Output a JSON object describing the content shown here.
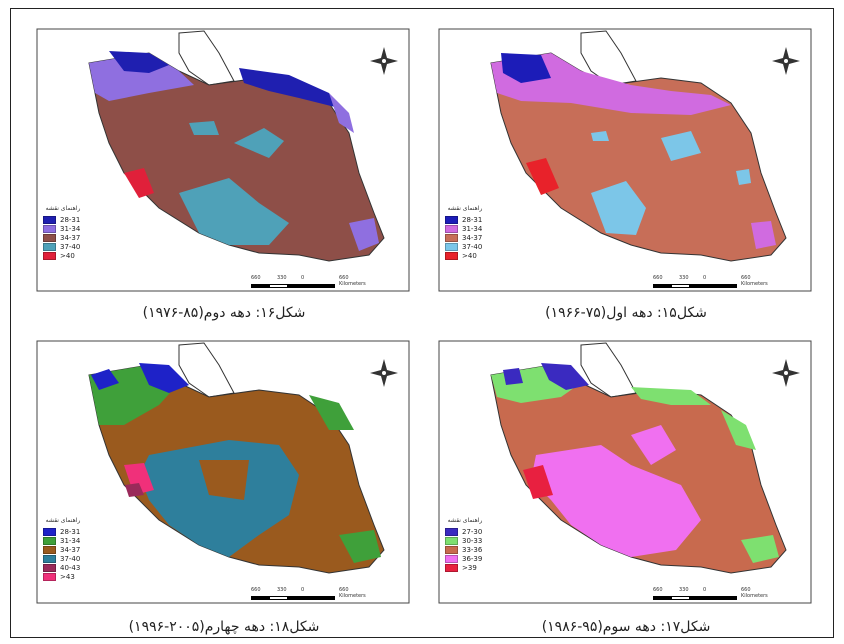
{
  "maps": [
    {
      "id": "map16",
      "caption": "شکل۱۶: دهه دوم(۸۵-۱۹۷۶)",
      "legend_title": "راهنمای نقشه",
      "legend": [
        {
          "label": "28-31",
          "color": "#1f1fb0"
        },
        {
          "label": "31-34",
          "color": "#8f6fe0"
        },
        {
          "label": "34-37",
          "color": "#8e4f48"
        },
        {
          "label": "37-40",
          "color": "#4fa1b8"
        },
        {
          "label": ">40",
          "color": "#e0203a"
        }
      ],
      "scale_text": "660 Kilometers",
      "scale_ticks": [
        "660",
        "330",
        "0"
      ]
    },
    {
      "id": "map15",
      "caption": "شکل۱۵: دهه اول(۷۵-۱۹۶۶)",
      "legend_title": "راهنمای نقشه",
      "legend": [
        {
          "label": "28-31",
          "color": "#1c1cb8"
        },
        {
          "label": "31-34",
          "color": "#d06be0"
        },
        {
          "label": "34-37",
          "color": "#c76e58"
        },
        {
          "label": "37-40",
          "color": "#7cc6e8"
        },
        {
          "label": ">40",
          "color": "#e8222a"
        }
      ],
      "scale_text": "660 Kilometers",
      "scale_ticks": [
        "660",
        "330",
        "0"
      ]
    },
    {
      "id": "map18",
      "caption": "شکل۱۸: دهه چهارم(۲۰۰۵-۱۹۹۶)",
      "legend_title": "راهنمای نقشه",
      "legend": [
        {
          "label": "28-31",
          "color": "#1e22c8"
        },
        {
          "label": "31-34",
          "color": "#3fa03a"
        },
        {
          "label": "34-37",
          "color": "#9a5a1e"
        },
        {
          "label": "37-40",
          "color": "#2e7f9c"
        },
        {
          "label": "40-43",
          "color": "#9a2a5a"
        },
        {
          "label": ">43",
          "color": "#f0307a"
        }
      ],
      "scale_text": "660 Kilometers",
      "scale_ticks": [
        "660",
        "330",
        "0"
      ]
    },
    {
      "id": "map17",
      "caption": "شکل۱۷: دهه سوم(۹۵-۱۹۸۶)",
      "legend_title": "راهنمای نقشه",
      "legend": [
        {
          "label": "27-30",
          "color": "#3a2ac0"
        },
        {
          "label": "30-33",
          "color": "#7ee070"
        },
        {
          "label": "33-36",
          "color": "#c86a4e"
        },
        {
          "label": "36-39",
          "color": "#f070f0"
        },
        {
          "label": ">39",
          "color": "#e82040"
        }
      ],
      "scale_text": "660 Kilometers",
      "scale_ticks": [
        "660",
        "330",
        "0"
      ]
    }
  ]
}
